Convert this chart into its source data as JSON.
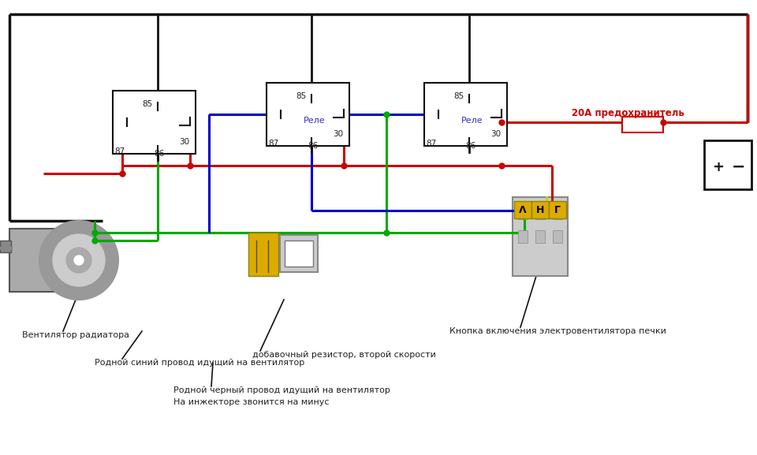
{
  "bg_color": "#ffffff",
  "wire_colors": {
    "red": "#cc0000",
    "green": "#00aa00",
    "blue": "#0000cc",
    "black": "#111111",
    "yellow": "#ddaa00"
  },
  "fuse_label": "20А предохранитель",
  "annotations": [
    "Вентилятор радиатора",
    "Родной синий провод идущий на вентилятор",
    "Родной черный провод идущий на вентилятор",
    "На инжекторе звонится на минус",
    "добавочный резистор, второй скорости",
    "Кнопка включения электровентилятора печки"
  ]
}
